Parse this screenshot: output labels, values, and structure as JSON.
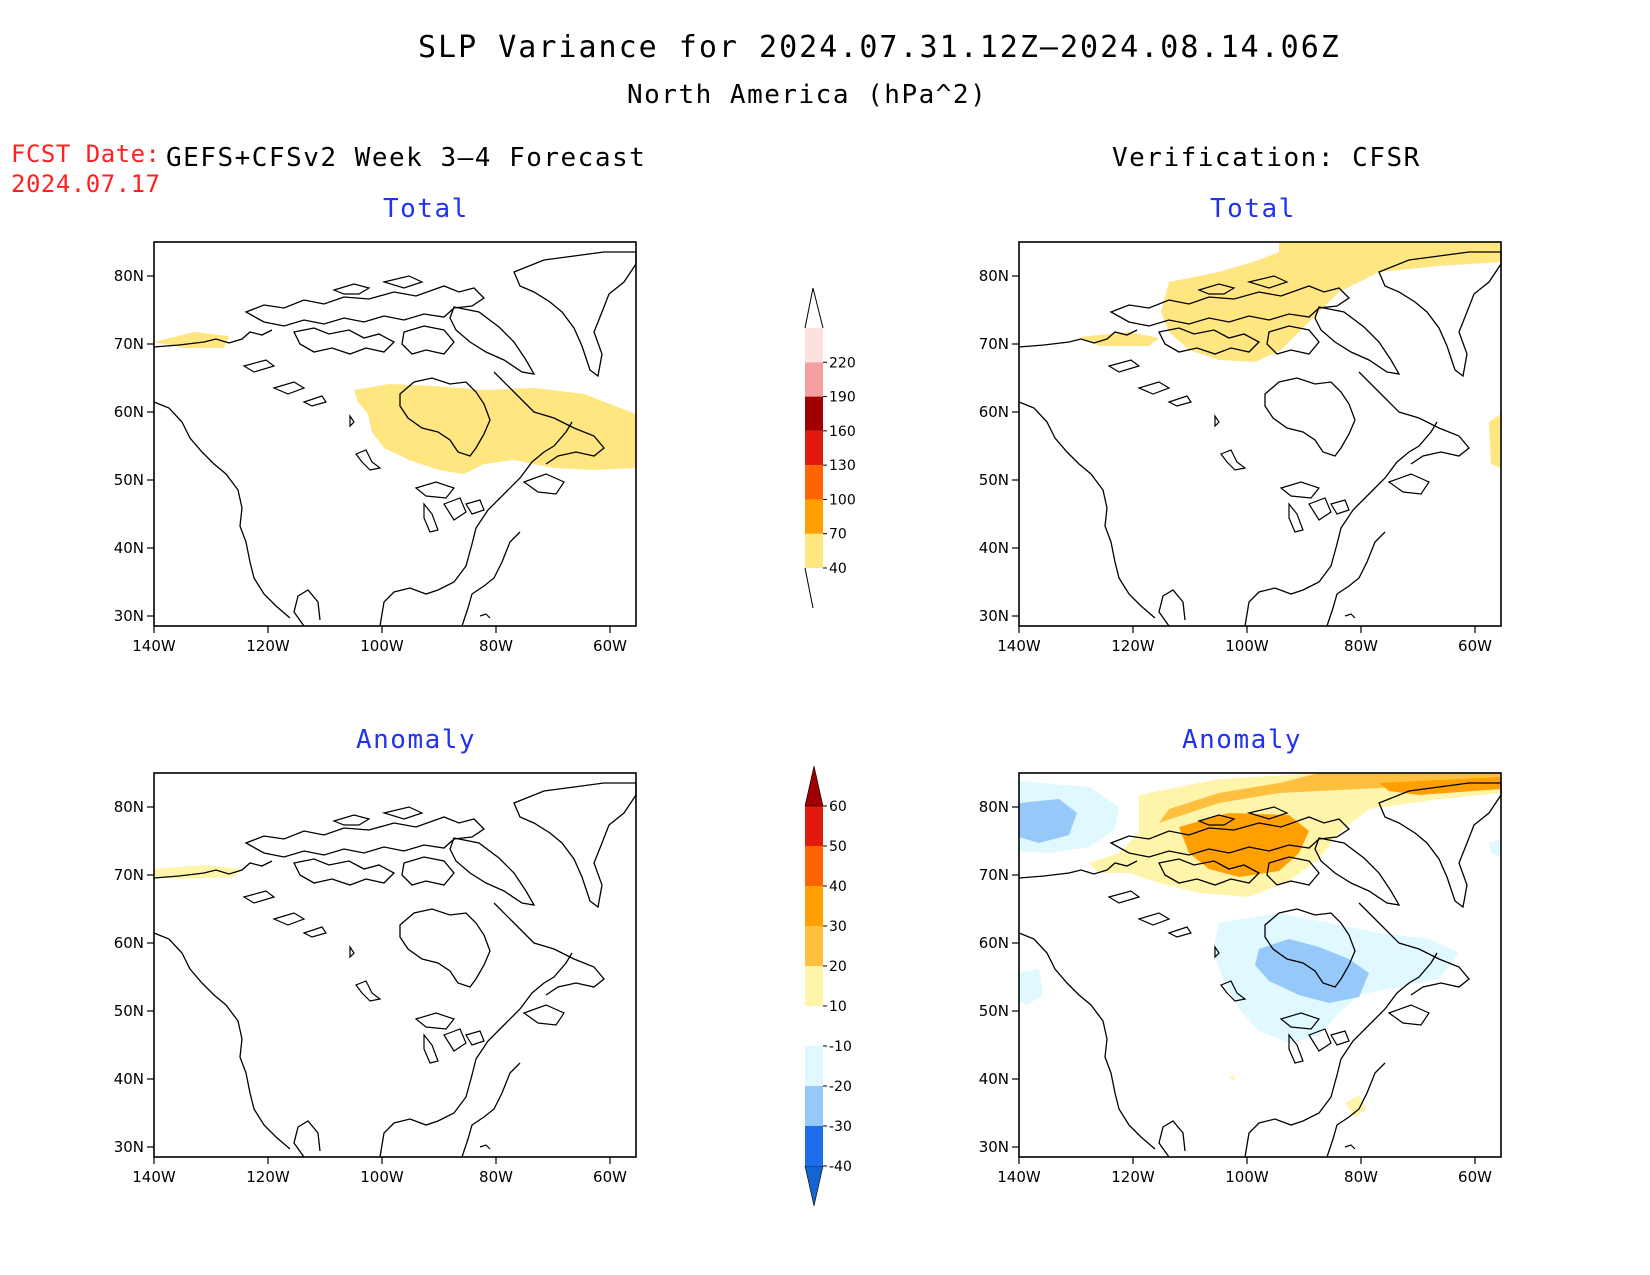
{
  "header": {
    "title": "SLP Variance for 2024.07.31.12Z—2024.08.14.06Z",
    "subtitle": "North America (hPa^2)",
    "fcst_date_label": "FCST Date:",
    "fcst_date_value": "2024.07.17",
    "left_column_title": "GEFS+CFSv2 Week 3—4 Forecast",
    "right_column_title": "Verification: CFSR"
  },
  "panels": {
    "forecast_total_title": "Total",
    "forecast_anomaly_title": "Anomaly",
    "verification_total_title": "Total",
    "verification_anomaly_title": "Anomaly"
  },
  "axes": {
    "lat_labels": [
      "80N",
      "70N",
      "60N",
      "50N",
      "40N",
      "30N"
    ],
    "lon_labels": [
      "140W",
      "120W",
      "100W",
      "80W",
      "60W"
    ]
  },
  "colorbars": {
    "total": {
      "labels": [
        "40",
        "70",
        "100",
        "130",
        "160",
        "190",
        "220"
      ],
      "colors": [
        "#ffe680",
        "#ffa000",
        "#ff6400",
        "#e01a0c",
        "#a00000",
        "#f4a0a0",
        "#fde0e0"
      ]
    },
    "anomaly": {
      "labels": [
        "-40",
        "-30",
        "-20",
        "-10",
        "10",
        "20",
        "30",
        "40",
        "50",
        "60"
      ],
      "colors": [
        "#1464d2",
        "#1e6eeb",
        "#96c8fa",
        "#e0f8ff",
        "#ffffff",
        "#fff5aa",
        "#ffc040",
        "#ffa000",
        "#ff6400",
        "#e01a0c",
        "#a00000"
      ]
    }
  }
}
